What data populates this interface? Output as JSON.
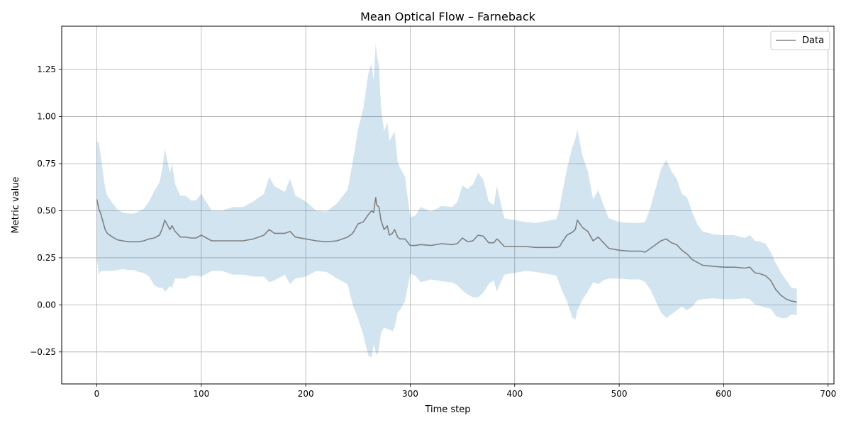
{
  "chart_data": {
    "type": "line",
    "title": "Mean Optical Flow – Farneback",
    "xlabel": "Time step",
    "ylabel": "Metric value",
    "xlim": [
      -33.6,
      705.6
    ],
    "ylim": [
      -0.42,
      1.48
    ],
    "xticks": [
      0,
      100,
      200,
      300,
      400,
      500,
      600,
      700
    ],
    "xtick_labels": [
      "0",
      "100",
      "200",
      "300",
      "400",
      "500",
      "600",
      "700"
    ],
    "yticks": [
      -0.25,
      0.0,
      0.25,
      0.5,
      0.75,
      1.0,
      1.25
    ],
    "ytick_labels": [
      "−0.25",
      "0.00",
      "0.25",
      "0.50",
      "0.75",
      "1.00",
      "1.25"
    ],
    "grid": true,
    "legend": {
      "position": "top-right",
      "entries": [
        "Data"
      ]
    },
    "colors": {
      "line": "#808080",
      "band": "#1f77b4",
      "grid": "#b0b0b0"
    },
    "series": [
      {
        "name": "Data",
        "x": [
          0,
          2,
          4,
          6,
          8,
          10,
          15,
          20,
          25,
          30,
          35,
          40,
          45,
          50,
          55,
          60,
          63,
          65,
          67,
          70,
          72,
          75,
          80,
          85,
          90,
          95,
          100,
          110,
          120,
          130,
          140,
          150,
          160,
          165,
          170,
          180,
          185,
          190,
          200,
          210,
          220,
          230,
          240,
          245,
          250,
          255,
          260,
          263,
          265,
          267,
          268,
          270,
          272,
          275,
          278,
          280,
          283,
          285,
          288,
          290,
          295,
          300,
          305,
          310,
          320,
          330,
          340,
          345,
          350,
          355,
          360,
          365,
          370,
          375,
          380,
          383,
          385,
          390,
          400,
          410,
          420,
          430,
          440,
          443,
          445,
          450,
          455,
          458,
          460,
          465,
          470,
          475,
          480,
          485,
          490,
          500,
          510,
          520,
          525,
          530,
          535,
          540,
          545,
          550,
          555,
          560,
          565,
          570,
          575,
          580,
          590,
          600,
          610,
          620,
          625,
          630,
          635,
          640,
          645,
          650,
          655,
          660,
          665,
          670
        ],
        "y": [
          0.56,
          0.51,
          0.48,
          0.44,
          0.4,
          0.38,
          0.36,
          0.345,
          0.34,
          0.335,
          0.335,
          0.335,
          0.34,
          0.35,
          0.355,
          0.37,
          0.41,
          0.45,
          0.43,
          0.4,
          0.42,
          0.39,
          0.36,
          0.36,
          0.355,
          0.355,
          0.37,
          0.34,
          0.34,
          0.34,
          0.34,
          0.35,
          0.37,
          0.4,
          0.38,
          0.38,
          0.39,
          0.36,
          0.35,
          0.34,
          0.335,
          0.34,
          0.36,
          0.38,
          0.43,
          0.44,
          0.48,
          0.5,
          0.49,
          0.57,
          0.53,
          0.52,
          0.45,
          0.4,
          0.42,
          0.37,
          0.38,
          0.4,
          0.36,
          0.35,
          0.35,
          0.315,
          0.315,
          0.32,
          0.315,
          0.325,
          0.32,
          0.325,
          0.355,
          0.335,
          0.34,
          0.37,
          0.365,
          0.33,
          0.33,
          0.35,
          0.34,
          0.31,
          0.31,
          0.31,
          0.305,
          0.305,
          0.305,
          0.31,
          0.33,
          0.37,
          0.385,
          0.4,
          0.45,
          0.41,
          0.39,
          0.34,
          0.36,
          0.33,
          0.3,
          0.29,
          0.285,
          0.285,
          0.28,
          0.3,
          0.32,
          0.34,
          0.35,
          0.33,
          0.32,
          0.29,
          0.27,
          0.24,
          0.225,
          0.21,
          0.205,
          0.2,
          0.2,
          0.195,
          0.2,
          0.17,
          0.165,
          0.155,
          0.13,
          0.08,
          0.05,
          0.03,
          0.02,
          0.015
        ],
        "std": [
          0.31,
          0.35,
          0.3,
          0.26,
          0.22,
          0.2,
          0.18,
          0.16,
          0.15,
          0.15,
          0.15,
          0.16,
          0.17,
          0.2,
          0.25,
          0.28,
          0.32,
          0.38,
          0.35,
          0.3,
          0.33,
          0.25,
          0.22,
          0.22,
          0.2,
          0.2,
          0.22,
          0.16,
          0.16,
          0.18,
          0.18,
          0.2,
          0.22,
          0.28,
          0.25,
          0.22,
          0.28,
          0.22,
          0.2,
          0.16,
          0.16,
          0.2,
          0.25,
          0.38,
          0.5,
          0.6,
          0.75,
          0.78,
          0.7,
          0.82,
          0.8,
          0.75,
          0.6,
          0.52,
          0.55,
          0.5,
          0.52,
          0.52,
          0.4,
          0.38,
          0.33,
          0.15,
          0.16,
          0.2,
          0.18,
          0.2,
          0.2,
          0.22,
          0.28,
          0.28,
          0.3,
          0.33,
          0.3,
          0.22,
          0.2,
          0.28,
          0.24,
          0.15,
          0.14,
          0.13,
          0.13,
          0.14,
          0.15,
          0.2,
          0.25,
          0.35,
          0.45,
          0.48,
          0.48,
          0.38,
          0.32,
          0.22,
          0.25,
          0.2,
          0.16,
          0.15,
          0.15,
          0.15,
          0.16,
          0.22,
          0.3,
          0.38,
          0.42,
          0.38,
          0.35,
          0.3,
          0.3,
          0.25,
          0.2,
          0.18,
          0.17,
          0.17,
          0.17,
          0.16,
          0.17,
          0.17,
          0.17,
          0.17,
          0.15,
          0.14,
          0.12,
          0.1,
          0.07,
          0.07
        ]
      }
    ]
  }
}
